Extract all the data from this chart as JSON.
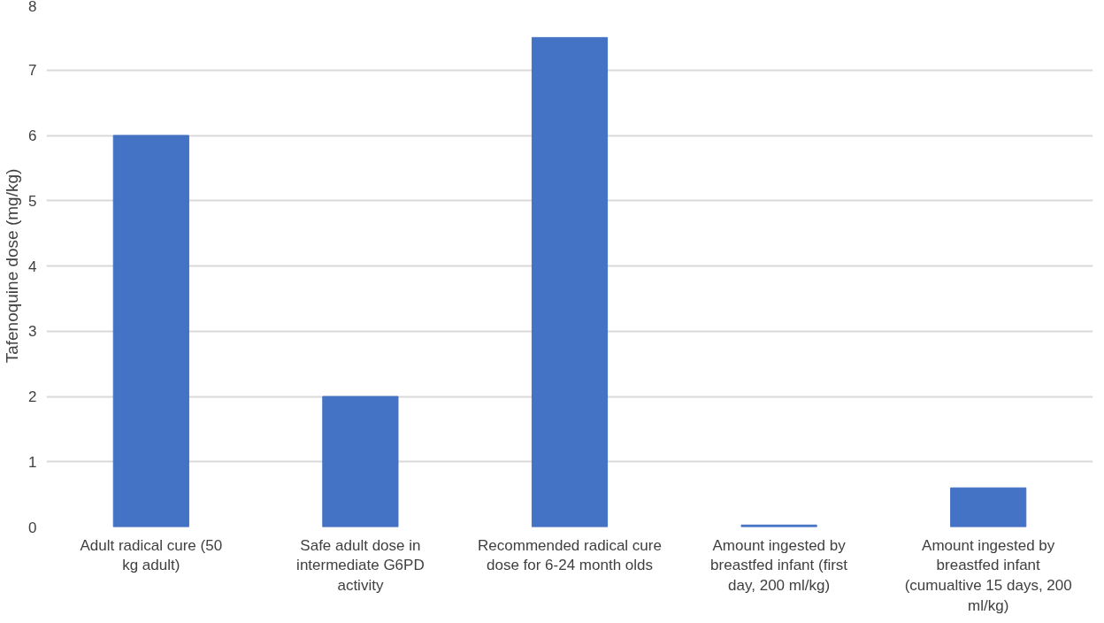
{
  "chart_data": {
    "type": "bar",
    "ylabel": "Tafenoquine dose (mg/kg)",
    "categories": [
      "Adult radical cure (50 kg adult)",
      "Safe adult dose in intermediate G6PD activity",
      "Recommended radical cure dose for 6-24 month olds",
      "Amount ingested by breastfed infant (first day, 200 ml/kg)",
      "Amount ingested by breastfed infant (cumualtive 15 days, 200 ml/kg)"
    ],
    "values": [
      6,
      2,
      7.5,
      0.03,
      0.6
    ],
    "color": "#4472c4",
    "ylim": [
      0,
      8
    ],
    "yticks": [
      0,
      1,
      2,
      3,
      4,
      5,
      6,
      7,
      8
    ],
    "grid": "y"
  }
}
